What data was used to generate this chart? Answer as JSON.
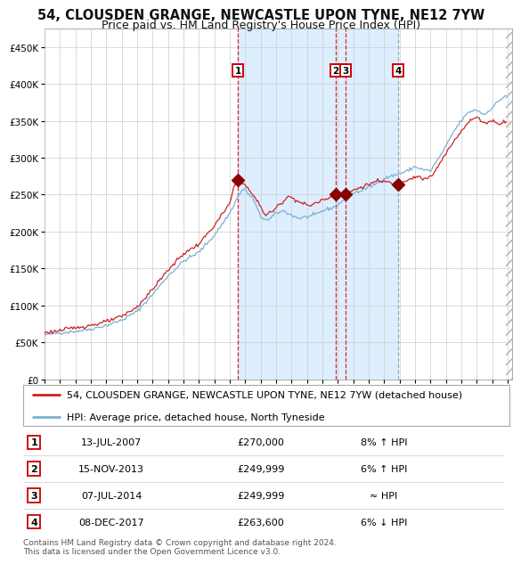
{
  "title": "54, CLOUSDEN GRANGE, NEWCASTLE UPON TYNE, NE12 7YW",
  "subtitle": "Price paid vs. HM Land Registry's House Price Index (HPI)",
  "legend_label_red": "54, CLOUSDEN GRANGE, NEWCASTLE UPON TYNE, NE12 7YW (detached house)",
  "legend_label_blue": "HPI: Average price, detached house, North Tyneside",
  "footer": "Contains HM Land Registry data © Crown copyright and database right 2024.\nThis data is licensed under the Open Government Licence v3.0.",
  "transactions": [
    {
      "num": 1,
      "date": "13-JUL-2007",
      "price": 270000,
      "price_str": "£270,000",
      "hpi_rel": "8% ↑ HPI"
    },
    {
      "num": 2,
      "date": "15-NOV-2013",
      "price": 249999,
      "price_str": "£249,999",
      "hpi_rel": "6% ↑ HPI"
    },
    {
      "num": 3,
      "date": "07-JUL-2014",
      "price": 249999,
      "price_str": "£249,999",
      "hpi_rel": "≈ HPI"
    },
    {
      "num": 4,
      "date": "08-DEC-2017",
      "price": 263600,
      "price_str": "£263,600",
      "hpi_rel": "6% ↓ HPI"
    }
  ],
  "transaction_dates_decimal": [
    2007.533,
    2013.877,
    2014.511,
    2017.936
  ],
  "transaction_prices": [
    270000,
    249999,
    249999,
    263600
  ],
  "ylim": [
    0,
    475000
  ],
  "yticks": [
    0,
    50000,
    100000,
    150000,
    200000,
    250000,
    300000,
    350000,
    400000,
    450000
  ],
  "xlim_start": 1995.0,
  "xlim_end": 2025.3,
  "background_color": "#ffffff",
  "plot_bg_color": "#ffffff",
  "shaded_region_color": "#ddeeff",
  "shaded_region_start": 2007.533,
  "shaded_region_end": 2017.936,
  "hatch_start": 2024.92,
  "hpi_color": "#7ab0d4",
  "price_color": "#cc2222",
  "vline_color_red": "#dd0000",
  "vline_color_grey": "#999999",
  "marker_color": "#880000",
  "label_box_edgecolor": "#cc0000",
  "grid_color": "#cccccc",
  "title_fontsize": 10.5,
  "subtitle_fontsize": 9,
  "axis_fontsize": 7.5,
  "legend_fontsize": 8,
  "table_fontsize": 8,
  "footer_fontsize": 6.5
}
